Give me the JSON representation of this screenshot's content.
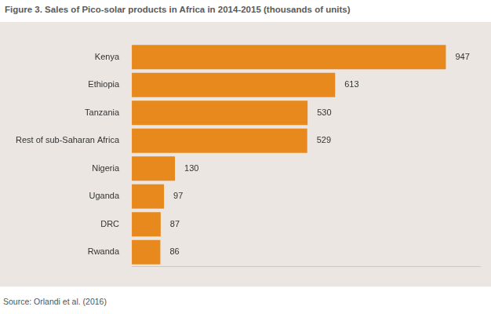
{
  "chart_data": {
    "type": "bar",
    "orientation": "horizontal",
    "title": "Figure 3. Sales of Pico-solar products in Africa in 2014-2015 (thousands of units)",
    "source": "Source: Orlandi et al. (2016)",
    "categories": [
      "Kenya",
      "Ethiopia",
      "Tanzania",
      "Rest of sub-Saharan Africa",
      "Nigeria",
      "Uganda",
      "DRC",
      "Rwanda"
    ],
    "values": [
      947,
      613,
      530,
      529,
      130,
      97,
      87,
      86
    ],
    "color": "#e8891e",
    "xlim": [
      0,
      1050
    ],
    "grid": false,
    "data_labels": true,
    "tick_labels": "y"
  }
}
